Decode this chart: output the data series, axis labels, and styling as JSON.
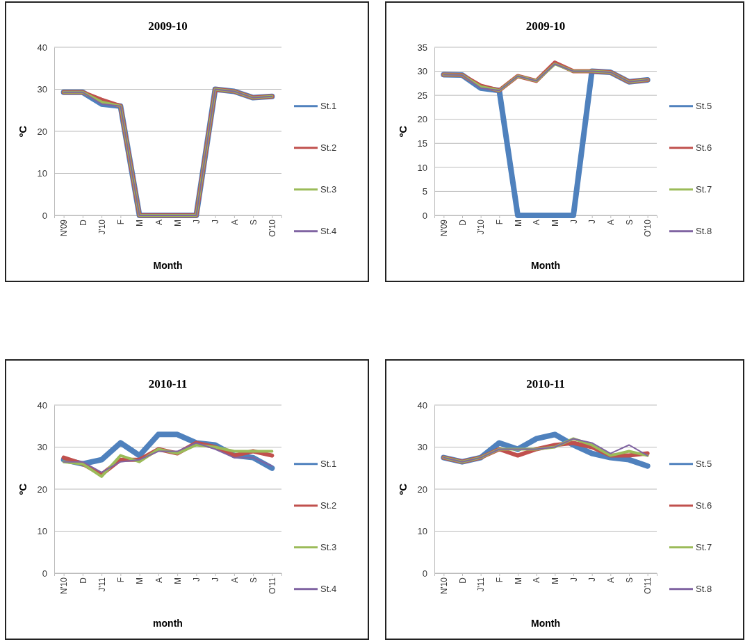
{
  "chart_data": [
    {
      "type": "line",
      "title": "2009-10",
      "xlabel": "Month",
      "ylabel": "ºC",
      "categories": [
        "N'09",
        "D",
        "J'10",
        "F",
        "M",
        "A",
        "M",
        "J",
        "J",
        "A",
        "S",
        "O'10"
      ],
      "ylim": [
        0,
        40
      ],
      "yticks": [
        0,
        10,
        20,
        30,
        40
      ],
      "grid": "y",
      "legend": "right",
      "series": [
        {
          "name": "St.1",
          "color": "#4f81bd",
          "values": [
            29.3,
            29.3,
            26.5,
            26,
            0,
            0,
            0,
            0,
            30,
            29.5,
            28,
            28.3
          ]
        },
        {
          "name": "St.2",
          "color": "#c0504d",
          "values": [
            29.3,
            29.3,
            27.5,
            26,
            0,
            0,
            0,
            0,
            30,
            29.5,
            28,
            28.3
          ]
        },
        {
          "name": "St.3",
          "color": "#9bbb59",
          "values": [
            29.3,
            29.3,
            27,
            26,
            0,
            0,
            0,
            0,
            30,
            29.5,
            28,
            28.3
          ]
        },
        {
          "name": "St.4",
          "color": "#8064a2",
          "values": [
            29.3,
            29.3,
            26.5,
            26,
            0,
            0,
            0,
            0,
            30,
            29.5,
            28,
            28.3
          ]
        }
      ]
    },
    {
      "type": "line",
      "title": "2009-10",
      "xlabel": "Month",
      "ylabel": "ºC",
      "categories": [
        "N'09",
        "D",
        "J'10",
        "F",
        "M",
        "A",
        "M",
        "J",
        "J",
        "A",
        "S",
        "O'10"
      ],
      "ylim": [
        0,
        35
      ],
      "yticks": [
        0,
        5,
        10,
        15,
        20,
        25,
        30,
        35
      ],
      "grid": "y",
      "legend": "right",
      "series": [
        {
          "name": "St.5",
          "color": "#4f81bd",
          "values": [
            29.3,
            29.2,
            26.5,
            26,
            0,
            0,
            0,
            0,
            30,
            29.8,
            27.8,
            28.2
          ]
        },
        {
          "name": "St.6",
          "color": "#c0504d",
          "values": [
            29.3,
            29.2,
            27,
            26,
            29,
            28,
            31.8,
            30,
            30,
            29.8,
            27.8,
            28.2
          ]
        },
        {
          "name": "St.7",
          "color": "#9bbb59",
          "values": [
            29.3,
            29.2,
            26.8,
            26,
            29,
            28,
            31.5,
            30,
            30,
            29.8,
            27.8,
            28.2
          ]
        },
        {
          "name": "St.8",
          "color": "#8064a2",
          "values": [
            29.3,
            29.2,
            26.5,
            26,
            29,
            28,
            31.5,
            30,
            30,
            29.8,
            27.8,
            28.2
          ]
        }
      ]
    },
    {
      "type": "line",
      "title": "2010-11",
      "xlabel": "month",
      "ylabel": "ºC",
      "categories": [
        "N'10",
        "D",
        "J'11",
        "F",
        "M",
        "A",
        "M",
        "J",
        "J",
        "A",
        "S",
        "O'11"
      ],
      "ylim": [
        0,
        40
      ],
      "yticks": [
        0,
        10,
        20,
        30,
        40
      ],
      "grid": "y",
      "legend": "right",
      "series": [
        {
          "name": "St.1",
          "color": "#4f81bd",
          "values": [
            27,
            26,
            27,
            31,
            28,
            33,
            33,
            31,
            30.5,
            28,
            27.5,
            25
          ]
        },
        {
          "name": "St.2",
          "color": "#c0504d",
          "values": [
            27.5,
            26,
            23.5,
            27,
            27,
            29.5,
            28.5,
            31,
            30,
            28,
            29,
            28
          ]
        },
        {
          "name": "St.3",
          "color": "#9bbb59",
          "values": [
            26.5,
            26,
            23,
            28,
            26.5,
            29.5,
            28.5,
            30.5,
            30,
            29,
            29,
            29
          ]
        },
        {
          "name": "St.4",
          "color": "#8064a2",
          "values": [
            26.5,
            26.5,
            24,
            26.5,
            27,
            29,
            29,
            31,
            29.5,
            27.5,
            27.5,
            25.5
          ]
        }
      ]
    },
    {
      "type": "line",
      "title": "2010-11",
      "xlabel": "Month",
      "ylabel": "ºC",
      "categories": [
        "N'10",
        "D",
        "J'11",
        "F",
        "M",
        "A",
        "M",
        "J",
        "J",
        "A",
        "S",
        "O'11"
      ],
      "ylim": [
        0,
        40
      ],
      "yticks": [
        0,
        10,
        20,
        30,
        40
      ],
      "grid": "y",
      "legend": "right",
      "series": [
        {
          "name": "St.5",
          "color": "#4f81bd",
          "values": [
            27.5,
            26.5,
            27.5,
            31,
            29.5,
            32,
            33,
            30.5,
            28.5,
            27.5,
            27,
            25.5
          ]
        },
        {
          "name": "St.6",
          "color": "#c0504d",
          "values": [
            27.5,
            26.5,
            27.5,
            29.5,
            28,
            29.5,
            30.5,
            31,
            30,
            28,
            28,
            28.5
          ]
        },
        {
          "name": "St.7",
          "color": "#9bbb59",
          "values": [
            27.5,
            26.5,
            27.5,
            29.5,
            29.5,
            29.5,
            30,
            32,
            30.5,
            28,
            29,
            28
          ]
        },
        {
          "name": "St.8",
          "color": "#8064a2",
          "values": [
            27.5,
            26.5,
            27.5,
            29.5,
            29.5,
            29.5,
            30,
            32,
            31,
            28.5,
            30.5,
            28
          ]
        }
      ]
    }
  ]
}
